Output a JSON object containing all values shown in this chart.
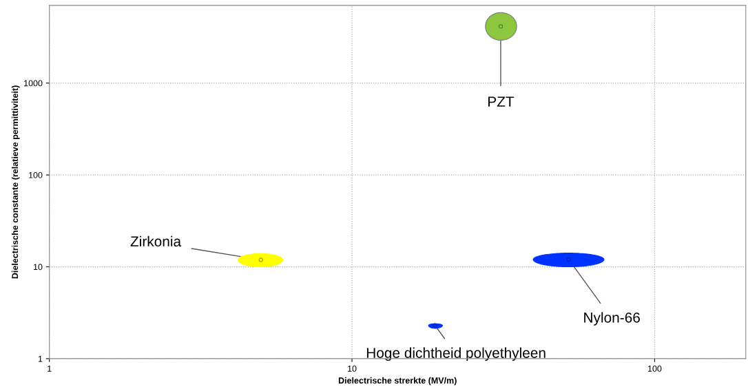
{
  "chart_data": {
    "type": "scatter",
    "xlabel": "Dielectrische strerkte (MV/m)",
    "ylabel": "Dielectrische constante (relatieve permittiviteit)",
    "log": "xy",
    "xlim": [
      1,
      200
    ],
    "ylim": [
      1,
      7000
    ],
    "xticks": [
      1,
      10,
      100
    ],
    "yticks": [
      1,
      10,
      100,
      1000
    ],
    "grid": true,
    "series": [
      {
        "name": "PZT",
        "color": "#8dc63f",
        "x": [
          31
        ],
        "values": [
          4140
        ],
        "xerrors": [
          [
            27.6,
            35
          ]
        ],
        "errors": [
          [
            2930,
            5850
          ]
        ]
      },
      {
        "name": "Zirkonia",
        "color": "#ffff00",
        "x": [
          5.0
        ],
        "values": [
          11.9
        ],
        "xerrors": [
          [
            4.2,
            5.9
          ]
        ],
        "errors": [
          [
            10,
            13.9
          ]
        ]
      },
      {
        "name": "Nylon-66",
        "color": "#0033ff",
        "x": [
          52
        ],
        "values": [
          12
        ],
        "xerrors": [
          [
            39.7,
            68
          ]
        ],
        "errors": [
          [
            10,
            14.1
          ]
        ]
      },
      {
        "name": "Hoge dichtheid polyethyleen",
        "color": "#0033ff",
        "x": [
          18.8
        ],
        "values": [
          2.3
        ],
        "xerrors": [
          [
            17.9,
            19.9
          ]
        ],
        "errors": [
          [
            2.14,
            2.4
          ]
        ]
      }
    ]
  }
}
